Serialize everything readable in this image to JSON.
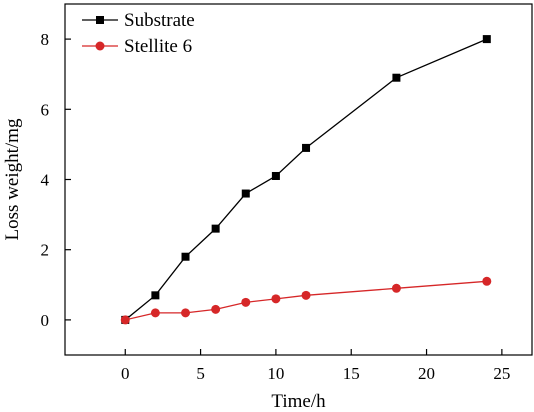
{
  "chart_data": {
    "type": "line",
    "title": "",
    "xlabel": "Time/h",
    "ylabel": "Loss weight/mg",
    "xlim": [
      -4,
      27
    ],
    "ylim": [
      -1,
      9
    ],
    "xticks": [
      0,
      5,
      10,
      15,
      20,
      25
    ],
    "yticks": [
      0,
      2,
      4,
      6,
      8
    ],
    "grid": false,
    "legend_position": "top-left",
    "series": [
      {
        "name": "Substrate",
        "color": "#000000",
        "marker": "square",
        "x": [
          0,
          2,
          4,
          6,
          8,
          10,
          12,
          18,
          24
        ],
        "y": [
          0,
          0.7,
          1.8,
          2.6,
          3.6,
          4.1,
          4.9,
          6.9,
          8.0
        ]
      },
      {
        "name": "Stellite 6",
        "color": "#d62728",
        "marker": "circle",
        "x": [
          0,
          2,
          4,
          6,
          8,
          10,
          12,
          18,
          24
        ],
        "y": [
          0,
          0.2,
          0.2,
          0.3,
          0.5,
          0.6,
          0.7,
          0.9,
          1.1
        ]
      }
    ]
  }
}
